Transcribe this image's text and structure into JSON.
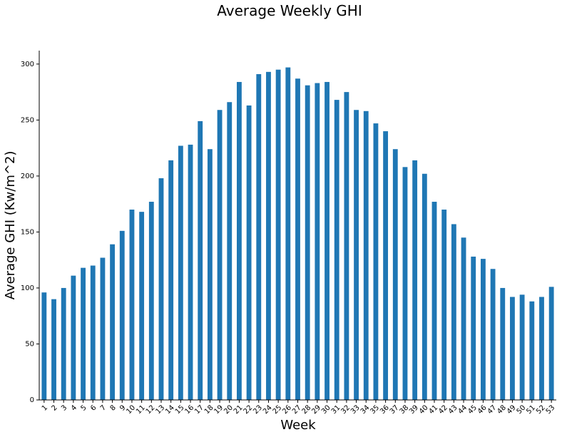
{
  "chart_data": {
    "type": "bar",
    "title": "Average Weekly GHI",
    "xlabel": "Week",
    "ylabel": "Average GHI (Kw/m^2)",
    "ylim": [
      0,
      312
    ],
    "yticks": [
      0,
      50,
      100,
      150,
      200,
      250,
      300
    ],
    "grid": false,
    "bar_color": "#1f77b4",
    "categories": [
      "1",
      "2",
      "3",
      "4",
      "5",
      "6",
      "7",
      "8",
      "9",
      "10",
      "11",
      "12",
      "13",
      "14",
      "15",
      "16",
      "17",
      "18",
      "19",
      "20",
      "21",
      "22",
      "23",
      "24",
      "25",
      "26",
      "27",
      "28",
      "29",
      "30",
      "31",
      "32",
      "33",
      "34",
      "35",
      "36",
      "37",
      "38",
      "39",
      "40",
      "41",
      "42",
      "43",
      "44",
      "45",
      "46",
      "47",
      "48",
      "49",
      "50",
      "51",
      "52",
      "53"
    ],
    "values": [
      96,
      90,
      100,
      111,
      118,
      120,
      127,
      139,
      151,
      170,
      168,
      177,
      198,
      214,
      227,
      228,
      249,
      224,
      259,
      266,
      284,
      263,
      291,
      293,
      295,
      297,
      287,
      281,
      283,
      284,
      268,
      275,
      259,
      258,
      247,
      240,
      224,
      208,
      214,
      202,
      177,
      170,
      157,
      145,
      128,
      126,
      117,
      100,
      92,
      94,
      88,
      92,
      101
    ]
  }
}
